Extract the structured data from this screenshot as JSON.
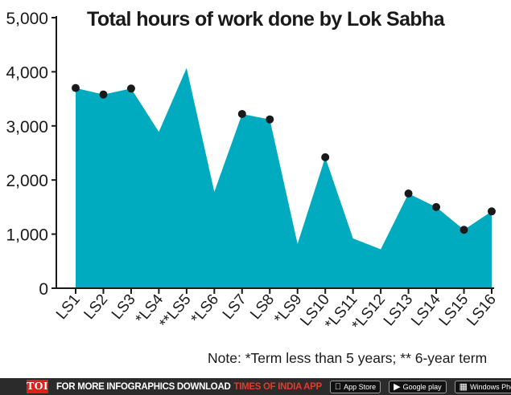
{
  "chart_data": {
    "type": "area",
    "title": "Total hours of work done by Lok Sabha",
    "xlabel": "",
    "ylabel": "",
    "ylim": [
      0,
      5000
    ],
    "yticks": [
      0,
      1000,
      2000,
      3000,
      4000,
      5000
    ],
    "ytick_labels": [
      "0",
      "1,000",
      "2,000",
      "3,000",
      "4,000",
      "5,000"
    ],
    "categories": [
      "LS1",
      "LS2",
      "LS3",
      "*LS4",
      "**LS5",
      "*LS6",
      "LS7",
      "LS8",
      "*LS9",
      "LS10",
      "*LS11",
      "*LS12",
      "LS13",
      "LS14",
      "LS15",
      "LS16"
    ],
    "values": [
      3700,
      3580,
      3690,
      2890,
      4070,
      1780,
      3220,
      3120,
      820,
      2420,
      920,
      720,
      1750,
      1500,
      1080,
      1420
    ],
    "markers": [
      true,
      true,
      true,
      false,
      false,
      false,
      true,
      true,
      false,
      true,
      false,
      false,
      true,
      true,
      true,
      true
    ],
    "fill_color": "#00abc0",
    "marker_color": "#1a1a1a",
    "grid": false,
    "note": "Note: *Term less than 5 years; ** 6-year term"
  },
  "footer": {
    "logo": "TOI",
    "promo_text": "FOR MORE INFOGRAPHICS DOWNLOAD",
    "promo_app": "TIMES OF INDIA APP",
    "app_store": "App Store",
    "google_play": "Google play",
    "windows_phone": "Windows Phone"
  }
}
